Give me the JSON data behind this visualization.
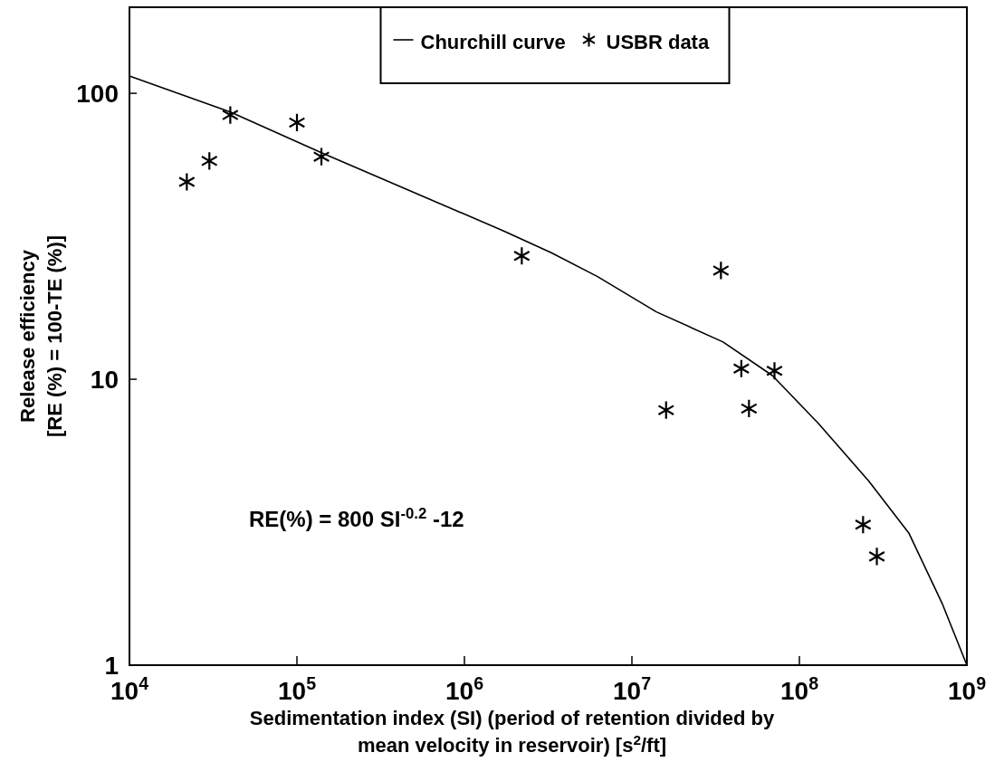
{
  "chart_data": {
    "type": "scatter",
    "xlabel": "Sedimentation index (SI) (period of retention divided by\nmean velocity in reservoir) [s$^{2}$/ft]",
    "ylabel": "Release efficiency\n[RE (%) = 100-TE (%)]",
    "annotations": [
      "RE(%) = 800 SI$^{-0.2}$ -12"
    ],
    "log": "xy",
    "grid": false,
    "legend": "top",
    "xlim": [
      10000,
      1000000000
    ],
    "xticks": [
      {
        "value": 10000,
        "label": "10$^{4}$"
      },
      {
        "value": 100000,
        "label": "10$^{5}$"
      },
      {
        "value": 1000000,
        "label": "10$^{6}$"
      },
      {
        "value": 10000000,
        "label": "10$^{7}$"
      },
      {
        "value": 100000000,
        "label": "10$^{8}$"
      },
      {
        "value": 1000000000,
        "label": "10$^{9}$"
      }
    ],
    "ylim": [
      1,
      200
    ],
    "yticks": [
      1,
      10,
      100
    ],
    "series": [
      {
        "name": "Churchill curve",
        "type": "line",
        "marker": "none",
        "line_style": "solid",
        "color": "#000000",
        "x": [
          10000,
          40000,
          140000,
          1800000,
          3300000,
          6200000,
          14000000,
          35000000,
          69000000,
          130000000,
          260000000,
          450000000,
          710000000,
          1000000000
        ],
        "values": [
          115,
          86,
          62,
          32.6,
          27.7,
          22.9,
          17.2,
          13.5,
          10.3,
          7.0,
          4.4,
          2.9,
          1.65,
          1
        ]
      },
      {
        "name": "USBR data",
        "marker": "cross",
        "color": "#000000",
        "x": [
          22000,
          30000,
          40000,
          100000,
          140000,
          2200000,
          34000000,
          16000000,
          45000000,
          50000000,
          71000000,
          240000000,
          290000000
        ],
        "values": [
          49,
          58,
          84,
          79,
          60,
          27,
          24,
          7.8,
          10.9,
          7.9,
          10.7,
          3.1,
          2.4
        ]
      }
    ]
  }
}
